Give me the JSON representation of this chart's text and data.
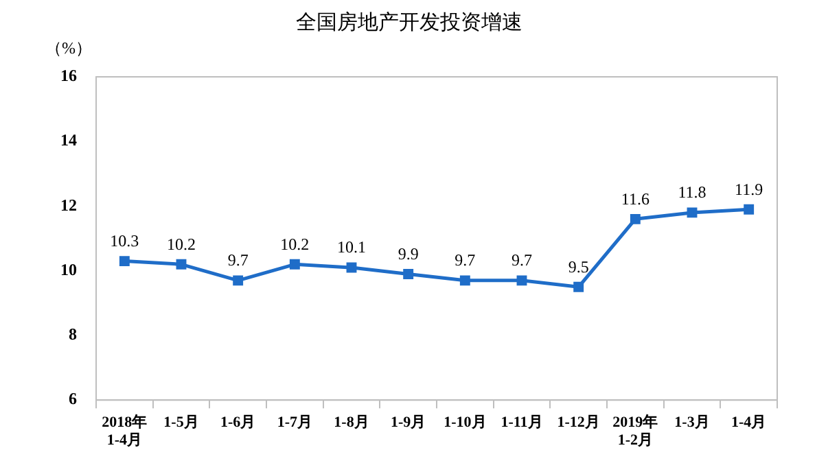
{
  "chart_data": {
    "type": "line",
    "title": "全国房地产开发投资增速",
    "ylabel": "（%）",
    "categories": [
      "2018年\n1-4月",
      "1-5月",
      "1-6月",
      "1-7月",
      "1-8月",
      "1-9月",
      "1-10月",
      "1-11月",
      "1-12月",
      "2019年\n1-2月",
      "1-3月",
      "1-4月"
    ],
    "series": [
      {
        "color": "#1f6dc8",
        "values": [
          10.3,
          10.2,
          9.7,
          10.2,
          10.1,
          9.9,
          9.7,
          9.7,
          9.5,
          11.6,
          11.8,
          11.9
        ]
      }
    ],
    "ylim": [
      6,
      16
    ],
    "yticks": [
      6,
      8,
      10,
      12,
      14,
      16
    ],
    "grid": false,
    "legend": false,
    "marker": "square",
    "line_style": "solid",
    "data_labels": true
  }
}
